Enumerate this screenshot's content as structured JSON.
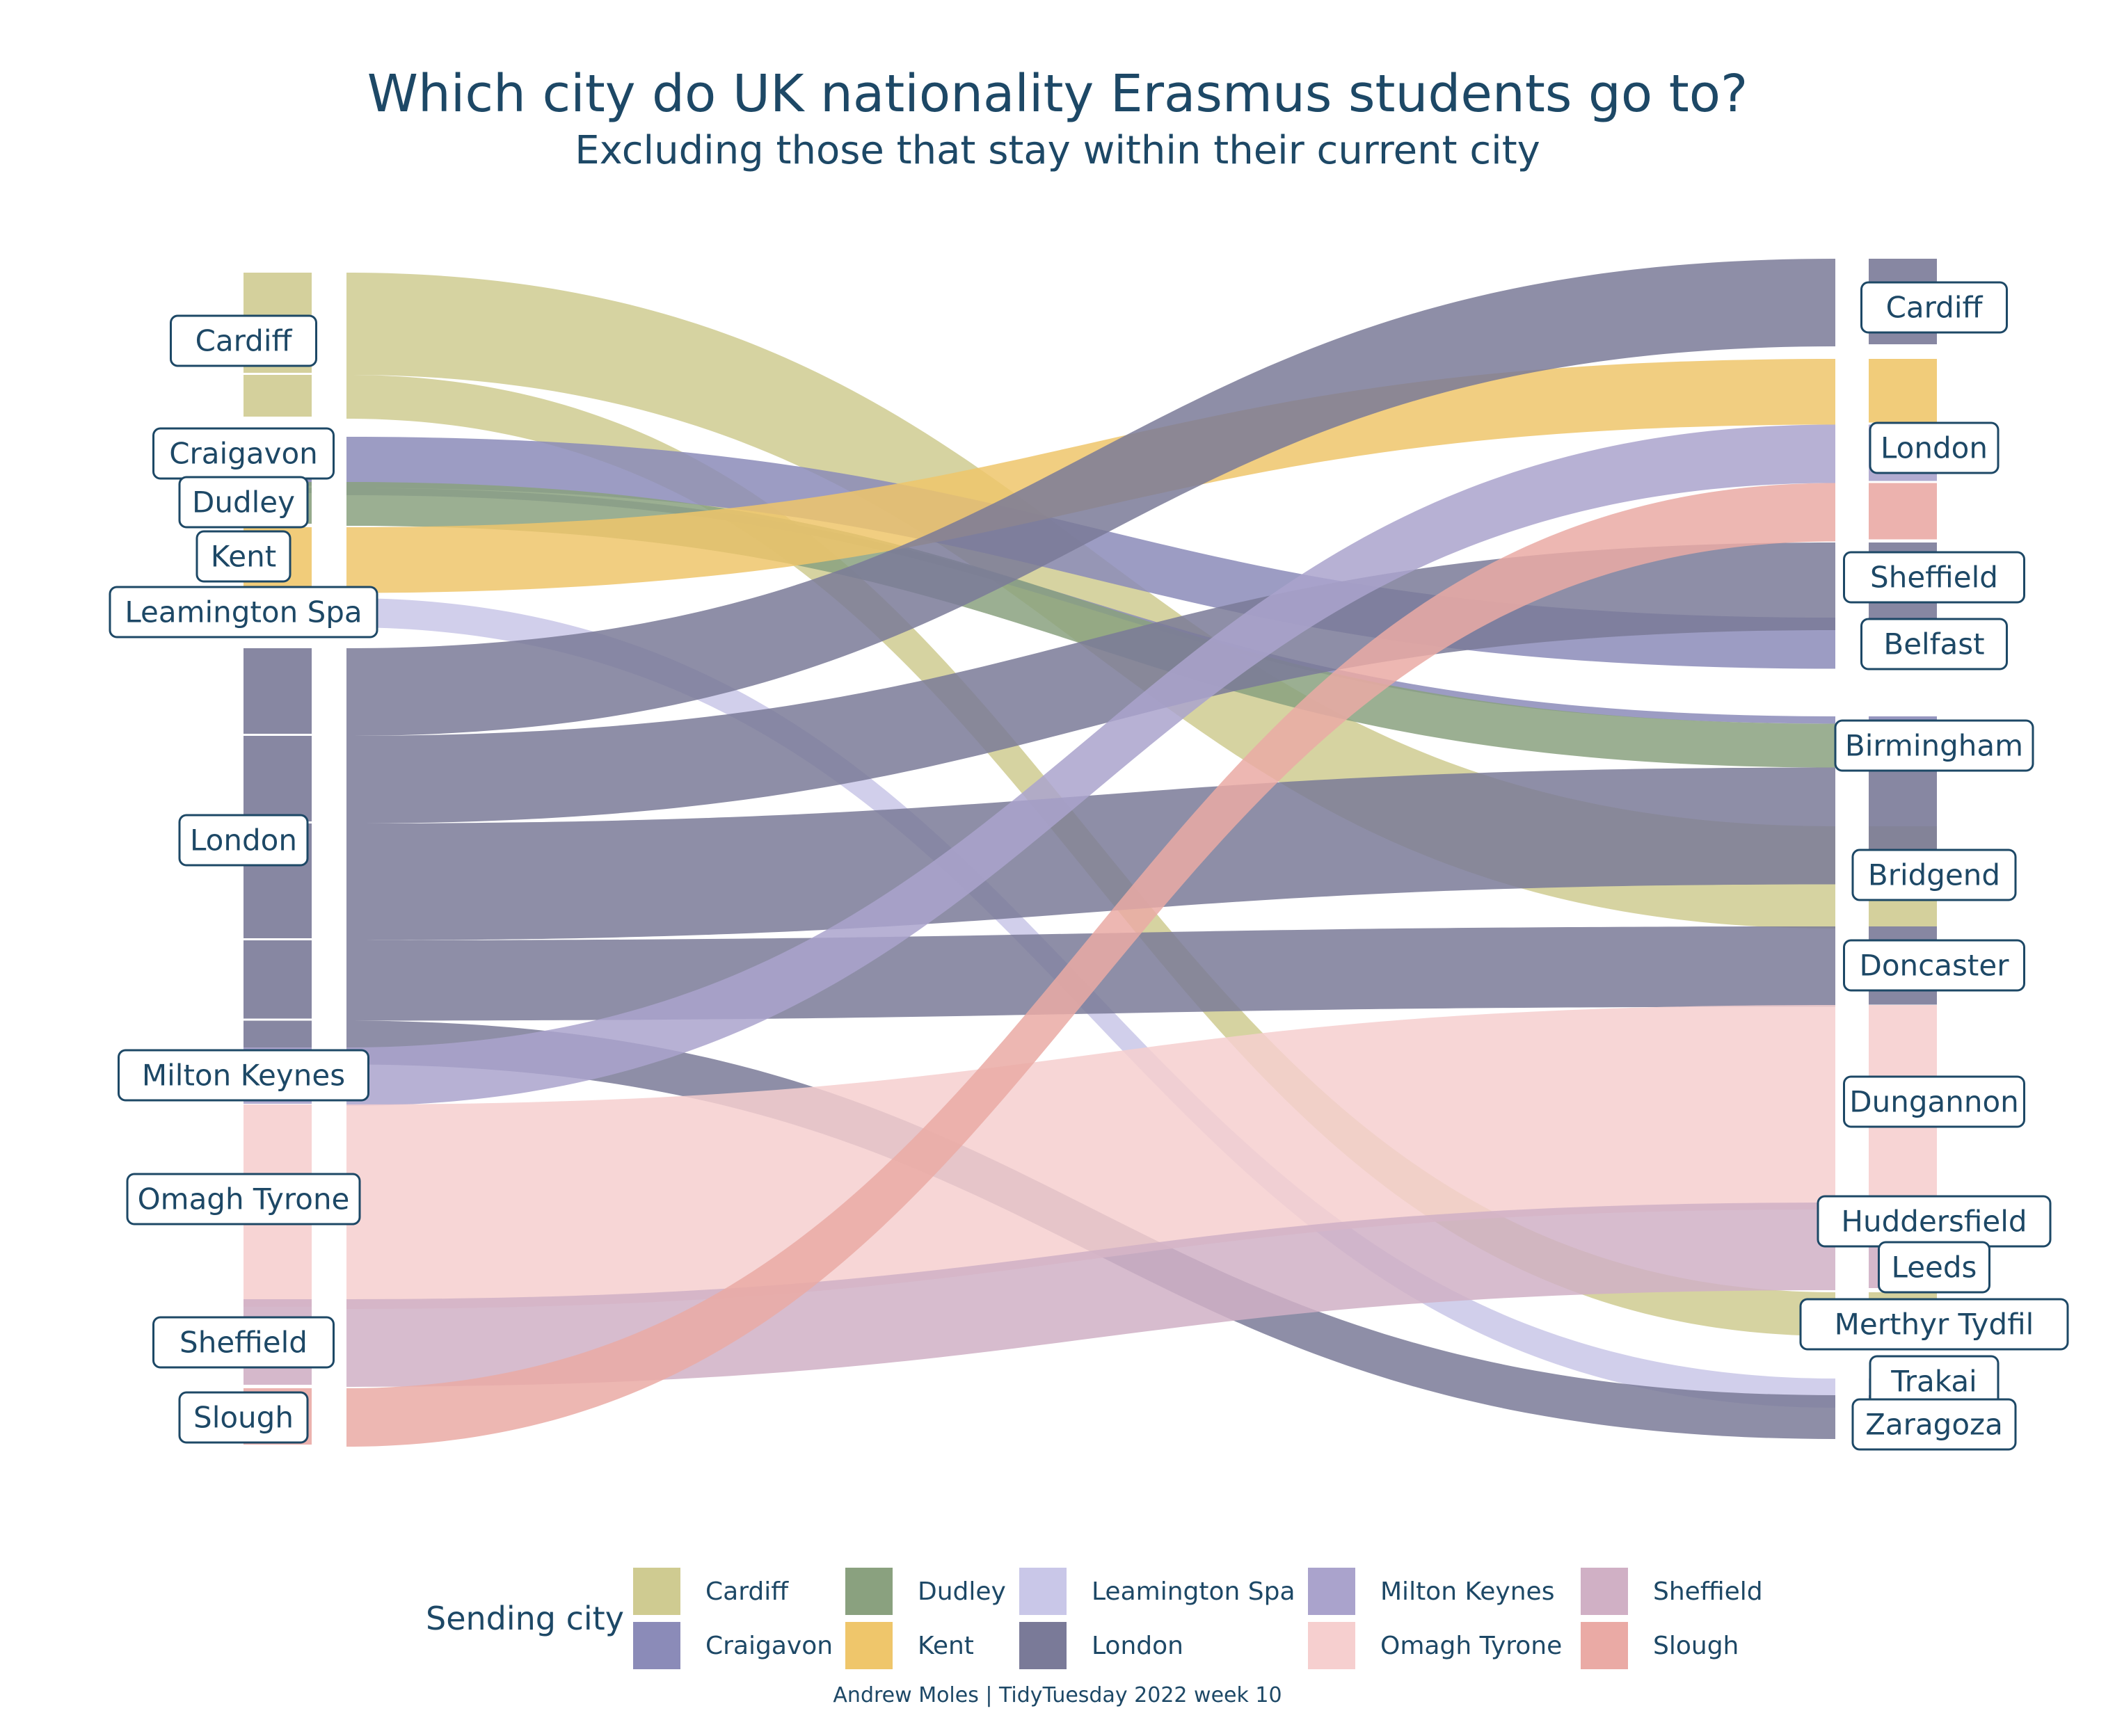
{
  "title": "Which city do UK nationality Erasmus students go to?",
  "subtitle": "Excluding those that stay within their current city",
  "caption": "Andrew Moles | TidyTuesday 2022 week 10",
  "legend": {
    "title": "Sending city",
    "items": [
      {
        "label": "Cardiff",
        "color": "#cfcb91"
      },
      {
        "label": "Craigavon",
        "color": "#8b8bb8"
      },
      {
        "label": "Dudley",
        "color": "#8aa17f"
      },
      {
        "label": "Kent",
        "color": "#efc66b"
      },
      {
        "label": "Leamington Spa",
        "color": "#c9c7e8"
      },
      {
        "label": "London",
        "color": "#7a7a98"
      },
      {
        "label": "Milton Keynes",
        "color": "#aaa3cc"
      },
      {
        "label": "Omagh Tyrone",
        "color": "#f6cfcf"
      },
      {
        "label": "Sheffield",
        "color": "#d0b0c5"
      },
      {
        "label": "Slough",
        "color": "#eaaaa5"
      }
    ]
  },
  "chart_data": {
    "type": "sankey",
    "source_nodes": [
      "Cardiff",
      "Craigavon",
      "Dudley",
      "Kent",
      "Leamington Spa",
      "London",
      "Milton Keynes",
      "Omagh Tyrone",
      "Sheffield",
      "Slough"
    ],
    "target_nodes": [
      "Cardiff",
      "London",
      "Sheffield",
      "Belfast",
      "Birmingham",
      "Bridgend",
      "Doncaster",
      "Dungannon",
      "Huddersfield",
      "Leeds",
      "Merthyr Tydfil",
      "Trakai",
      "Zaragoza"
    ],
    "flows": [
      {
        "from": "Cardiff",
        "to": "Bridgend",
        "value": 7
      },
      {
        "from": "Cardiff",
        "to": "Merthyr Tydfil",
        "value": 3
      },
      {
        "from": "Craigavon",
        "to": "Belfast",
        "value": 3.5
      },
      {
        "from": "Craigavon",
        "to": "Birmingham",
        "value": 0.5
      },
      {
        "from": "Dudley",
        "to": "Birmingham",
        "value": 3
      },
      {
        "from": "Kent",
        "to": "London",
        "value": 4.5
      },
      {
        "from": "Leamington Spa",
        "to": "Trakai",
        "value": 2
      },
      {
        "from": "London",
        "to": "Cardiff",
        "value": 6
      },
      {
        "from": "London",
        "to": "Sheffield",
        "value": 6
      },
      {
        "from": "London",
        "to": "Birmingham",
        "value": 8
      },
      {
        "from": "London",
        "to": "Doncaster",
        "value": 5.5
      },
      {
        "from": "London",
        "to": "Zaragoza",
        "value": 3
      },
      {
        "from": "Milton Keynes",
        "to": "London",
        "value": 4
      },
      {
        "from": "Omagh Tyrone",
        "to": "Dungannon",
        "value": 14
      },
      {
        "from": "Sheffield",
        "to": "Huddersfield",
        "value": 6
      },
      {
        "from": "Slough",
        "to": "London",
        "value": 4
      }
    ]
  }
}
